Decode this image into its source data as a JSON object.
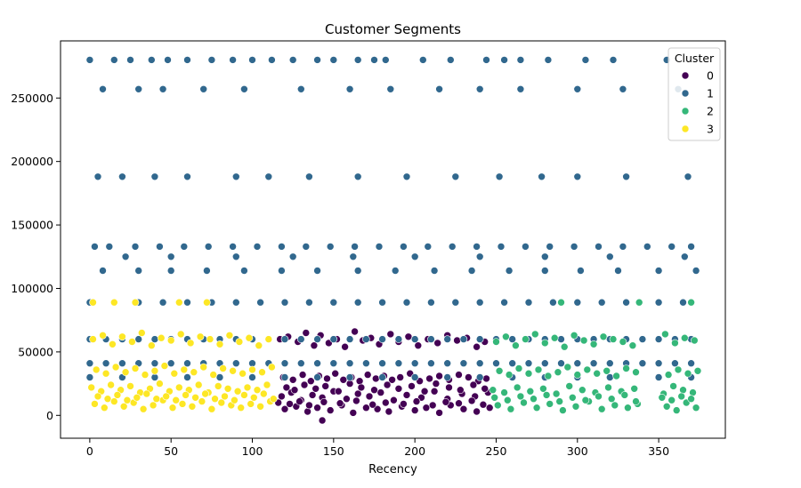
{
  "chart_data": {
    "type": "scatter",
    "title": "Customer Segments",
    "xlabel": "Recency",
    "ylabel": "",
    "xlim": [
      -18,
      391
    ],
    "ylim": [
      -18000,
      295000
    ],
    "xticks": [
      0,
      50,
      100,
      150,
      200,
      250,
      300,
      350
    ],
    "xtick_labels": [
      "0",
      "50",
      "100",
      "150",
      "200",
      "250",
      "300",
      "350"
    ],
    "yticks": [
      0,
      50000,
      100000,
      150000,
      200000,
      250000
    ],
    "ytick_labels": [
      "0",
      "50000",
      "100000",
      "150000",
      "200000",
      "250000"
    ],
    "grid": false,
    "legend": {
      "title": "Cluster",
      "placement": "top-right",
      "entries": [
        {
          "label": "0",
          "color": "#440154"
        },
        {
          "label": "1",
          "color": "#31688e"
        },
        {
          "label": "2",
          "color": "#35b779"
        },
        {
          "label": "3",
          "color": "#fde725"
        }
      ]
    },
    "series": [
      {
        "name": "0",
        "color": "#440154",
        "x": [
          117,
          122,
          128,
          133,
          138,
          142,
          147,
          152,
          157,
          163,
          168,
          173,
          178,
          185,
          190,
          196,
          202,
          208,
          214,
          220,
          226,
          232,
          238,
          243,
          119,
          125,
          131,
          136,
          141,
          146,
          151,
          156,
          161,
          166,
          171,
          176,
          181,
          186,
          191,
          197,
          203,
          209,
          215,
          221,
          227,
          233,
          239,
          244,
          118,
          124,
          130,
          137,
          143,
          150,
          158,
          165,
          172,
          179,
          187,
          195,
          204,
          212,
          220,
          229,
          237,
          245,
          120,
          127,
          134,
          140,
          148,
          155,
          162,
          170,
          177,
          184,
          192,
          200,
          207,
          215,
          222,
          230,
          238,
          246,
          121,
          126,
          132,
          139,
          145,
          153,
          160,
          167,
          175,
          183,
          190,
          198,
          206,
          213,
          221,
          228,
          236,
          243,
          116,
          123,
          129,
          135,
          144,
          154,
          164,
          174,
          182,
          193,
          201,
          211,
          219,
          227,
          235,
          242,
          143
        ],
        "y": [
          60000,
          62000,
          58000,
          65000,
          55000,
          63000,
          57000,
          60000,
          54000,
          66000,
          59000,
          61000,
          56000,
          64000,
          58000,
          62000,
          55000,
          60000,
          57000,
          63000,
          59000,
          61000,
          54000,
          58000,
          30000,
          28000,
          32000,
          27000,
          31000,
          29000,
          33000,
          28000,
          30000,
          27000,
          32000,
          29000,
          31000,
          28000,
          30000,
          33000,
          27000,
          29000,
          31000,
          28000,
          32000,
          30000,
          27000,
          29000,
          15000,
          18000,
          12000,
          16000,
          14000,
          19000,
          13000,
          17000,
          15000,
          18000,
          12000,
          16000,
          14000,
          19000,
          13000,
          17000,
          15000,
          18000,
          5000,
          7000,
          3000,
          6000,
          4000,
          8000,
          2000,
          6000,
          5000,
          3000,
          7000,
          4000,
          6000,
          2000,
          8000,
          5000,
          3000,
          6000,
          22000,
          20000,
          24000,
          21000,
          23000,
          19000,
          25000,
          22000,
          20000,
          24000,
          21000,
          23000,
          19000,
          25000,
          22000,
          20000,
          24000,
          21000,
          10000,
          9000,
          11000,
          8000,
          10500,
          9500,
          11500,
          8500,
          10000,
          9000,
          11000,
          8000,
          10500,
          9500,
          11500,
          8500,
          -4000
        ]
      },
      {
        "name": "1",
        "color": "#31688e",
        "x": [
          0,
          15,
          25,
          38,
          48,
          60,
          75,
          88,
          100,
          112,
          125,
          140,
          150,
          165,
          175,
          182,
          205,
          222,
          244,
          255,
          265,
          282,
          305,
          322,
          355,
          8,
          30,
          45,
          70,
          95,
          130,
          160,
          185,
          215,
          240,
          265,
          300,
          328,
          362,
          5,
          20,
          40,
          60,
          90,
          110,
          135,
          165,
          195,
          225,
          252,
          278,
          300,
          330,
          368,
          3,
          12,
          28,
          43,
          58,
          73,
          88,
          103,
          118,
          133,
          148,
          163,
          178,
          193,
          208,
          223,
          238,
          253,
          268,
          283,
          298,
          313,
          328,
          343,
          358,
          370,
          22,
          50,
          90,
          125,
          162,
          200,
          240,
          280,
          320,
          366,
          8,
          30,
          50,
          72,
          95,
          118,
          140,
          165,
          188,
          212,
          235,
          258,
          280,
          302,
          325,
          350,
          373,
          0,
          10,
          20,
          30,
          40,
          50,
          60,
          70,
          80,
          90,
          100,
          110,
          120,
          130,
          140,
          150,
          160,
          170,
          180,
          190,
          200,
          210,
          220,
          230,
          240,
          250,
          260,
          270,
          280,
          290,
          300,
          310,
          320,
          330,
          340,
          350,
          360,
          370,
          0,
          10,
          20,
          30,
          40,
          50,
          60,
          70,
          80,
          90,
          100,
          110,
          120,
          130,
          140,
          150,
          160,
          170,
          180,
          190,
          200,
          210,
          220,
          230,
          240,
          250,
          260,
          270,
          280,
          290,
          300,
          310,
          320,
          330,
          340,
          350,
          360,
          370,
          0,
          15,
          30,
          45,
          60,
          75,
          90,
          105,
          120,
          135,
          150,
          165,
          180,
          195,
          210,
          225,
          240,
          255,
          270,
          285,
          300,
          315,
          330,
          350,
          365,
          0,
          20,
          40,
          60,
          80,
          100,
          120,
          140,
          160,
          180,
          200,
          220,
          240,
          260,
          280,
          300,
          320,
          350,
          370
        ],
        "y": [
          280000,
          280000,
          280000,
          280000,
          280000,
          280000,
          280000,
          280000,
          280000,
          280000,
          280000,
          280000,
          280000,
          280000,
          280000,
          280000,
          280000,
          280000,
          280000,
          280000,
          280000,
          280000,
          280000,
          280000,
          280000,
          257000,
          257000,
          257000,
          257000,
          257000,
          257000,
          257000,
          257000,
          257000,
          257000,
          257000,
          257000,
          257000,
          257000,
          188000,
          188000,
          188000,
          188000,
          188000,
          188000,
          188000,
          188000,
          188000,
          188000,
          188000,
          188000,
          188000,
          188000,
          188000,
          133000,
          133000,
          133000,
          133000,
          133000,
          133000,
          133000,
          133000,
          133000,
          133000,
          133000,
          133000,
          133000,
          133000,
          133000,
          133000,
          133000,
          133000,
          133000,
          133000,
          133000,
          133000,
          133000,
          133000,
          133000,
          133000,
          125000,
          125000,
          125000,
          125000,
          125000,
          125000,
          125000,
          125000,
          125000,
          125000,
          114000,
          114000,
          114000,
          114000,
          114000,
          114000,
          114000,
          114000,
          114000,
          114000,
          114000,
          114000,
          114000,
          114000,
          114000,
          114000,
          114000,
          60000,
          60000,
          60000,
          60000,
          60000,
          60000,
          60000,
          60000,
          60000,
          60000,
          60000,
          60000,
          60000,
          60000,
          60000,
          60000,
          60000,
          60000,
          60000,
          60000,
          60000,
          60000,
          60000,
          60000,
          60000,
          60000,
          60000,
          60000,
          60000,
          60000,
          60000,
          60000,
          60000,
          60000,
          60000,
          60000,
          60000,
          60000,
          41000,
          41000,
          41000,
          41000,
          41000,
          41000,
          41000,
          41000,
          41000,
          41000,
          41000,
          41000,
          41000,
          41000,
          41000,
          41000,
          41000,
          41000,
          41000,
          41000,
          41000,
          41000,
          41000,
          41000,
          41000,
          41000,
          41000,
          41000,
          41000,
          41000,
          41000,
          41000,
          41000,
          41000,
          41000,
          41000,
          41000,
          41000,
          89000,
          89000,
          89000,
          89000,
          89000,
          89000,
          89000,
          89000,
          89000,
          89000,
          89000,
          89000,
          89000,
          89000,
          89000,
          89000,
          89000,
          89000,
          89000,
          89000,
          89000,
          89000,
          89000,
          89000,
          89000,
          30000,
          30000,
          30000,
          30000,
          30000,
          30000,
          30000,
          30000,
          30000,
          30000,
          30000,
          30000,
          30000,
          30000,
          30000,
          30000,
          30000,
          30000,
          30000
        ]
      },
      {
        "name": "2",
        "color": "#35b779",
        "x": [
          250,
          256,
          262,
          268,
          274,
          280,
          286,
          292,
          298,
          304,
          310,
          316,
          322,
          328,
          334,
          354,
          360,
          366,
          372,
          252,
          258,
          264,
          270,
          276,
          282,
          288,
          294,
          300,
          306,
          312,
          318,
          324,
          330,
          336,
          356,
          362,
          368,
          374,
          248,
          255,
          263,
          271,
          279,
          287,
          295,
          303,
          311,
          319,
          327,
          335,
          353,
          359,
          365,
          371,
          251,
          259,
          267,
          275,
          283,
          291,
          299,
          307,
          315,
          323,
          331,
          337,
          355,
          361,
          367,
          373,
          249,
          257,
          265,
          273,
          281,
          289,
          297,
          305,
          313,
          321,
          329,
          336,
          352,
          358,
          364,
          370,
          290,
          338,
          370
        ],
        "y": [
          58000,
          62000,
          55000,
          60000,
          64000,
          57000,
          61000,
          54000,
          63000,
          59000,
          56000,
          62000,
          60000,
          58000,
          55000,
          64000,
          57000,
          61000,
          59000,
          35000,
          32000,
          37000,
          33000,
          36000,
          31000,
          34000,
          38000,
          32000,
          36000,
          33000,
          35000,
          31000,
          37000,
          34000,
          32000,
          36000,
          33000,
          35000,
          20000,
          18000,
          22000,
          19000,
          21000,
          17000,
          23000,
          20000,
          18000,
          22000,
          19000,
          21000,
          17000,
          23000,
          20000,
          18000,
          8000,
          5000,
          10000,
          6000,
          9000,
          4000,
          7000,
          11000,
          5000,
          8000,
          6000,
          9000,
          7000,
          4000,
          10000,
          6000,
          14000,
          12000,
          15000,
          13000,
          16000,
          11000,
          14000,
          12000,
          15000,
          13000,
          16000,
          11000,
          14000,
          12000,
          15000,
          13000,
          89000,
          89000,
          89000
        ]
      },
      {
        "name": "3",
        "color": "#fde725",
        "x": [
          2,
          8,
          14,
          20,
          26,
          32,
          38,
          44,
          50,
          56,
          62,
          68,
          74,
          80,
          86,
          92,
          98,
          104,
          110,
          4,
          10,
          16,
          22,
          28,
          34,
          40,
          46,
          52,
          58,
          64,
          70,
          76,
          82,
          88,
          94,
          100,
          106,
          112,
          1,
          7,
          13,
          19,
          25,
          31,
          37,
          43,
          49,
          55,
          61,
          67,
          73,
          79,
          85,
          91,
          97,
          103,
          109,
          3,
          9,
          15,
          21,
          27,
          33,
          39,
          45,
          51,
          57,
          63,
          69,
          75,
          81,
          87,
          93,
          99,
          105,
          111,
          5,
          11,
          17,
          23,
          29,
          35,
          41,
          47,
          53,
          59,
          65,
          71,
          77,
          83,
          89,
          95,
          101,
          107,
          113,
          2,
          15,
          28,
          55,
          72
        ],
        "y": [
          60000,
          63000,
          56000,
          62000,
          58000,
          65000,
          55000,
          61000,
          59000,
          64000,
          57000,
          62000,
          60000,
          56000,
          63000,
          58000,
          61000,
          55000,
          60000,
          36000,
          33000,
          38000,
          34000,
          37000,
          32000,
          35000,
          39000,
          33000,
          36000,
          34000,
          38000,
          32000,
          37000,
          35000,
          33000,
          36000,
          34000,
          38000,
          22000,
          19000,
          24000,
          20000,
          23000,
          18000,
          21000,
          25000,
          19000,
          22000,
          20000,
          24000,
          18000,
          23000,
          21000,
          19000,
          22000,
          20000,
          24000,
          9000,
          6000,
          11000,
          7000,
          10000,
          5000,
          8000,
          12000,
          6000,
          9000,
          7000,
          11000,
          5000,
          10000,
          8000,
          6000,
          9000,
          7000,
          11000,
          15000,
          13000,
          16000,
          12000,
          14000,
          17000,
          13000,
          15000,
          12000,
          16000,
          14000,
          17000,
          13000,
          15000,
          12000,
          16000,
          14000,
          17000,
          13000,
          89000,
          89000,
          89000,
          89000,
          89000
        ]
      }
    ]
  }
}
